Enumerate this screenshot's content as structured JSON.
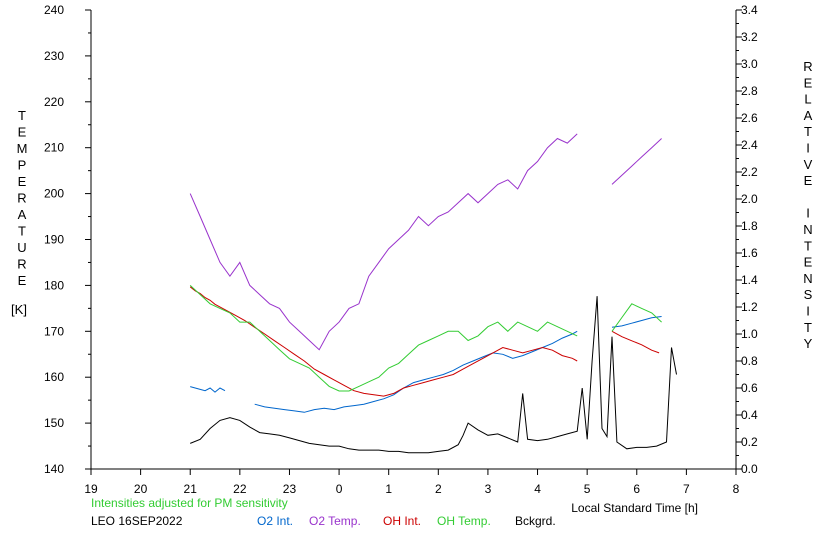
{
  "chart_data": {
    "type": "line",
    "title": "",
    "xlabel": "Local Standard Time [h]",
    "ylabel_left_letters": [
      "T",
      "E",
      "M",
      "P",
      "E",
      "R",
      "A",
      "T",
      "U",
      "R",
      "E"
    ],
    "ylabel_left_unit": "[K]",
    "ylabel_right_letters": [
      "R",
      "E",
      "L",
      "A",
      "T",
      "I",
      "V",
      "E",
      "",
      "I",
      "N",
      "T",
      "E",
      "N",
      "S",
      "I",
      "T",
      "Y"
    ],
    "x_ticks": [
      "19",
      "20",
      "21",
      "22",
      "23",
      "0",
      "1",
      "2",
      "3",
      "4",
      "5",
      "6",
      "7",
      "8"
    ],
    "xlim": [
      19,
      32
    ],
    "y_left_ticks": [
      "140",
      "150",
      "160",
      "170",
      "180",
      "190",
      "200",
      "210",
      "220",
      "230",
      "240"
    ],
    "y_left_lim": [
      140,
      240
    ],
    "y_right_ticks": [
      "0.0",
      "0.2",
      "0.4",
      "0.6",
      "0.8",
      "1.0",
      "1.2",
      "1.4",
      "1.6",
      "1.8",
      "2.0",
      "2.2",
      "2.4",
      "2.6",
      "2.8",
      "3.0",
      "3.2",
      "3.4"
    ],
    "y_right_lim": [
      0,
      3.4
    ],
    "grid": false,
    "series": [
      {
        "name": "O2 Int.",
        "color": "#0066cc",
        "axis": "right",
        "x": [
          21.0,
          21.1,
          21.2,
          21.3,
          21.4,
          21.5,
          21.6,
          21.7,
          22.3,
          22.5,
          22.7,
          22.9,
          23.1,
          23.3,
          23.5,
          23.7,
          23.9,
          24.1,
          24.3,
          24.5,
          24.7,
          24.9,
          25.1,
          25.3,
          25.5,
          25.7,
          25.9,
          26.1,
          26.3,
          26.5,
          26.7,
          26.9,
          27.1,
          27.3,
          27.5,
          27.7,
          27.9,
          28.1,
          28.3,
          28.5,
          28.7,
          28.8,
          29.5,
          29.7,
          29.9,
          30.1,
          30.3,
          30.5
        ],
        "y": [
          0.61,
          0.6,
          0.59,
          0.58,
          0.6,
          0.57,
          0.6,
          0.58,
          0.48,
          0.46,
          0.45,
          0.44,
          0.43,
          0.42,
          0.44,
          0.45,
          0.44,
          0.46,
          0.47,
          0.48,
          0.5,
          0.52,
          0.55,
          0.6,
          0.64,
          0.66,
          0.68,
          0.7,
          0.73,
          0.77,
          0.8,
          0.83,
          0.86,
          0.85,
          0.82,
          0.84,
          0.87,
          0.9,
          0.93,
          0.97,
          1.0,
          1.02,
          1.05,
          1.06,
          1.08,
          1.1,
          1.12,
          1.13
        ]
      },
      {
        "name": "O2 Temp.",
        "color": "#9933cc",
        "axis": "left",
        "x": [
          21.0,
          21.2,
          21.4,
          21.6,
          21.8,
          22.0,
          22.2,
          22.4,
          22.6,
          22.8,
          23.0,
          23.2,
          23.4,
          23.6,
          23.8,
          24.0,
          24.2,
          24.4,
          24.6,
          24.8,
          25.0,
          25.2,
          25.4,
          25.6,
          25.8,
          26.0,
          26.2,
          26.4,
          26.6,
          26.8,
          27.0,
          27.2,
          27.4,
          27.6,
          27.8,
          28.0,
          28.2,
          28.4,
          28.6,
          28.8,
          29.5,
          29.7,
          29.9,
          30.1,
          30.3,
          30.5
        ],
        "y": [
          200,
          195,
          190,
          185,
          182,
          185,
          180,
          178,
          176,
          175,
          172,
          170,
          168,
          166,
          170,
          172,
          175,
          176,
          182,
          185,
          188,
          190,
          192,
          195,
          193,
          195,
          196,
          198,
          200,
          198,
          200,
          202,
          203,
          201,
          205,
          207,
          210,
          212,
          211,
          213,
          202,
          204,
          206,
          208,
          210,
          212
        ]
      },
      {
        "name": "OH Int.",
        "color": "#cc0000",
        "axis": "right",
        "x": [
          21.0,
          21.1,
          21.2,
          21.3,
          21.4,
          21.5,
          21.7,
          21.9,
          22.1,
          22.3,
          22.5,
          22.7,
          22.9,
          23.1,
          23.3,
          23.5,
          23.7,
          23.9,
          24.1,
          24.3,
          24.5,
          24.7,
          24.9,
          25.1,
          25.3,
          25.5,
          25.7,
          25.9,
          26.1,
          26.3,
          26.5,
          26.7,
          26.9,
          27.1,
          27.3,
          27.5,
          27.7,
          27.9,
          28.1,
          28.3,
          28.5,
          28.7,
          28.8,
          29.5,
          29.7,
          29.9,
          30.1,
          30.3,
          30.45
        ],
        "y": [
          1.35,
          1.32,
          1.3,
          1.27,
          1.25,
          1.22,
          1.18,
          1.14,
          1.1,
          1.05,
          1.0,
          0.95,
          0.9,
          0.85,
          0.8,
          0.74,
          0.7,
          0.66,
          0.62,
          0.58,
          0.56,
          0.55,
          0.54,
          0.56,
          0.6,
          0.62,
          0.64,
          0.66,
          0.68,
          0.7,
          0.74,
          0.78,
          0.82,
          0.86,
          0.9,
          0.88,
          0.86,
          0.88,
          0.9,
          0.88,
          0.84,
          0.82,
          0.8,
          1.02,
          0.98,
          0.95,
          0.92,
          0.88,
          0.86
        ]
      },
      {
        "name": "OH Temp.",
        "color": "#33cc33",
        "axis": "left",
        "x": [
          21.0,
          21.2,
          21.4,
          21.6,
          21.8,
          22.0,
          22.2,
          22.4,
          22.6,
          22.8,
          23.0,
          23.2,
          23.4,
          23.6,
          23.8,
          24.0,
          24.2,
          24.4,
          24.6,
          24.8,
          25.0,
          25.2,
          25.4,
          25.6,
          25.8,
          26.0,
          26.2,
          26.4,
          26.6,
          26.8,
          27.0,
          27.2,
          27.4,
          27.6,
          27.8,
          28.0,
          28.2,
          28.4,
          28.6,
          28.8,
          29.5,
          29.7,
          29.9,
          30.1,
          30.3,
          30.5
        ],
        "y": [
          180,
          178,
          176,
          175,
          174,
          172,
          172,
          170,
          168,
          166,
          164,
          163,
          162,
          160,
          158,
          157,
          157,
          158,
          159,
          160,
          162,
          163,
          165,
          167,
          168,
          169,
          170,
          170,
          168,
          169,
          171,
          172,
          170,
          172,
          171,
          170,
          172,
          171,
          170,
          169,
          170,
          173,
          176,
          175,
          174,
          172
        ]
      },
      {
        "name": "Bckgrd.",
        "color": "#000000",
        "axis": "right",
        "x": [
          21.0,
          21.2,
          21.4,
          21.6,
          21.8,
          22.0,
          22.2,
          22.4,
          22.6,
          22.8,
          23.0,
          23.2,
          23.4,
          23.6,
          23.8,
          24.0,
          24.2,
          24.4,
          24.6,
          24.8,
          25.0,
          25.2,
          25.4,
          25.6,
          25.8,
          26.0,
          26.2,
          26.4,
          26.5,
          26.6,
          26.8,
          27.0,
          27.2,
          27.4,
          27.6,
          27.7,
          27.8,
          28.0,
          28.2,
          28.4,
          28.6,
          28.8,
          28.9,
          29.0,
          29.1,
          29.2,
          29.3,
          29.4,
          29.5,
          29.6,
          29.8,
          30.0,
          30.2,
          30.4,
          30.6,
          30.7,
          30.8
        ],
        "y": [
          0.19,
          0.22,
          0.3,
          0.36,
          0.38,
          0.36,
          0.31,
          0.27,
          0.26,
          0.25,
          0.23,
          0.21,
          0.19,
          0.18,
          0.17,
          0.17,
          0.15,
          0.14,
          0.14,
          0.14,
          0.13,
          0.13,
          0.12,
          0.12,
          0.12,
          0.13,
          0.14,
          0.18,
          0.25,
          0.34,
          0.29,
          0.25,
          0.26,
          0.23,
          0.2,
          0.56,
          0.22,
          0.21,
          0.22,
          0.24,
          0.26,
          0.28,
          0.6,
          0.22,
          0.8,
          1.28,
          0.3,
          0.24,
          0.98,
          0.2,
          0.15,
          0.16,
          0.16,
          0.17,
          0.2,
          0.9,
          0.7
        ]
      }
    ]
  },
  "footer": {
    "note": "Intensities adjusted for PM sensitivity",
    "station": "LEO 16SEP2022"
  },
  "colors": {
    "note": "#33cc33",
    "O2 Int.": "#0066cc",
    "O2 Temp.": "#9933cc",
    "OH Int.": "#cc0000",
    "OH Temp.": "#33cc33",
    "Bckgrd.": "#000000"
  }
}
